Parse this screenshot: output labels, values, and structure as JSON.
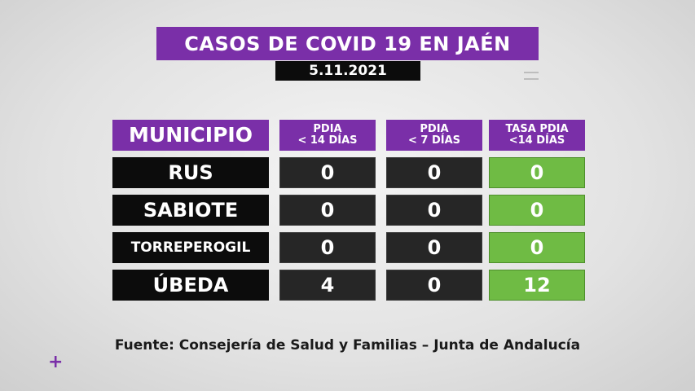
{
  "title": "CASOS DE COVID 19 EN JAÉN",
  "date": "5.11.2021",
  "table": {
    "headers": {
      "municipio": "MUNICIPIO",
      "pdia14_line1": "PDIA",
      "pdia14_line2": "< 14 DÍAS",
      "pdia7_line1": "PDIA",
      "pdia7_line2": "< 7 DÍAS",
      "tasa_line1": "TASA PDIA",
      "tasa_line2": "<14 DÍAS"
    },
    "rows": [
      {
        "municipio": "RUS",
        "pdia14": "0",
        "pdia7": "0",
        "tasa": "0"
      },
      {
        "municipio": "SABIOTE",
        "pdia14": "0",
        "pdia7": "0",
        "tasa": "0"
      },
      {
        "municipio": "TORREPEROGIL",
        "pdia14": "0",
        "pdia7": "0",
        "tasa": "0"
      },
      {
        "municipio": "ÚBEDA",
        "pdia14": "4",
        "pdia7": "0",
        "tasa": "12"
      }
    ]
  },
  "source": "Fuente: Consejería de Salud y Familias – Junta de Andalucía",
  "decoration": {
    "plus_symbol": "+"
  },
  "colors": {
    "purple": "#7a2fa8",
    "green": "#6fbb44",
    "black": "#0c0c0c",
    "dark_gray": "#262626"
  }
}
